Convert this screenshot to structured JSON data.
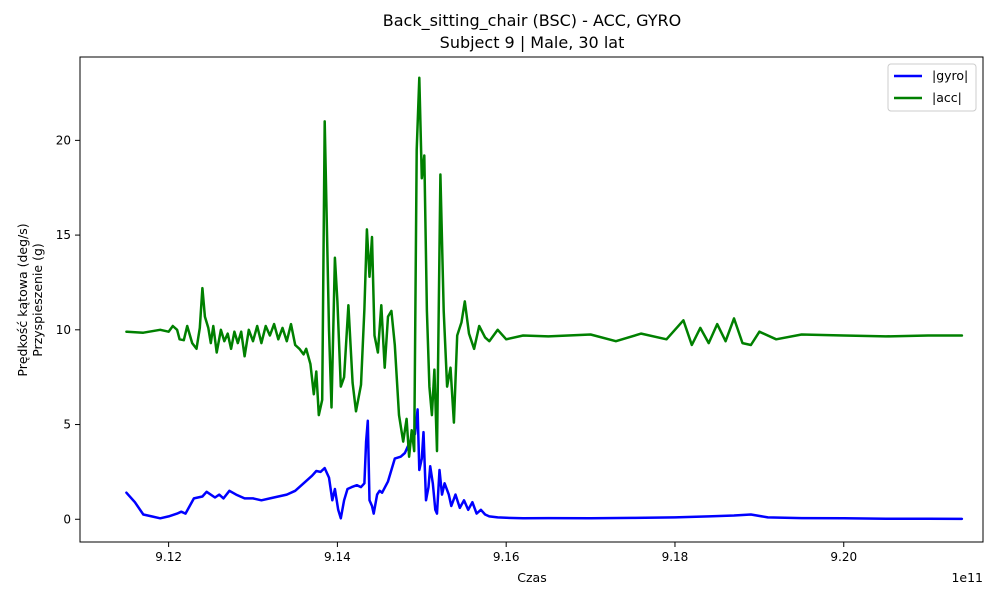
{
  "chart_data": {
    "type": "line",
    "title": "Back_sitting_chair (BSC) - ACC, GYRO",
    "subtitle": "Subject 9 | Male, 30 lat",
    "xlabel": "Czas",
    "ylabel_lines": [
      "Prędkość kątowa (deg/s)",
      "Przyspieszenie (g)"
    ],
    "x_offset_text": "1e11",
    "xlim": [
      9.1095,
      9.2165
    ],
    "ylim": [
      -1.2,
      24.4
    ],
    "x_ticks": [
      9.12,
      9.14,
      9.16,
      9.18,
      9.2
    ],
    "x_tick_labels": [
      "9.12",
      "9.14",
      "9.16",
      "9.18",
      "9.20"
    ],
    "y_ticks": [
      0,
      5,
      10,
      15,
      20
    ],
    "y_tick_labels": [
      "0",
      "5",
      "10",
      "15",
      "20"
    ],
    "grid": false,
    "legend_position": "top-right",
    "series": [
      {
        "name": "|gyro|",
        "color": "#0000ff",
        "points": [
          [
            9.115,
            1.4
          ],
          [
            9.116,
            0.9
          ],
          [
            9.117,
            0.25
          ],
          [
            9.118,
            0.15
          ],
          [
            9.119,
            0.05
          ],
          [
            9.12,
            0.15
          ],
          [
            9.121,
            0.3
          ],
          [
            9.1215,
            0.4
          ],
          [
            9.122,
            0.3
          ],
          [
            9.123,
            1.1
          ],
          [
            9.124,
            1.2
          ],
          [
            9.1245,
            1.45
          ],
          [
            9.1255,
            1.15
          ],
          [
            9.126,
            1.3
          ],
          [
            9.1265,
            1.1
          ],
          [
            9.1272,
            1.5
          ],
          [
            9.128,
            1.3
          ],
          [
            9.129,
            1.1
          ],
          [
            9.13,
            1.1
          ],
          [
            9.131,
            1.0
          ],
          [
            9.132,
            1.1
          ],
          [
            9.133,
            1.2
          ],
          [
            9.134,
            1.3
          ],
          [
            9.135,
            1.5
          ],
          [
            9.136,
            1.9
          ],
          [
            9.137,
            2.3
          ],
          [
            9.1375,
            2.55
          ],
          [
            9.138,
            2.5
          ],
          [
            9.1385,
            2.7
          ],
          [
            9.139,
            2.2
          ],
          [
            9.1394,
            1.0
          ],
          [
            9.1397,
            1.6
          ],
          [
            9.1401,
            0.5
          ],
          [
            9.1404,
            0.05
          ],
          [
            9.1408,
            1.0
          ],
          [
            9.1412,
            1.6
          ],
          [
            9.1417,
            1.7
          ],
          [
            9.1423,
            1.8
          ],
          [
            9.1428,
            1.7
          ],
          [
            9.1432,
            1.9
          ],
          [
            9.1434,
            4.1
          ],
          [
            9.1436,
            5.2
          ],
          [
            9.1438,
            1.0
          ],
          [
            9.1441,
            0.7
          ],
          [
            9.1443,
            0.3
          ],
          [
            9.1447,
            1.3
          ],
          [
            9.145,
            1.5
          ],
          [
            9.1453,
            1.4
          ],
          [
            9.146,
            2.0
          ],
          [
            9.1468,
            3.2
          ],
          [
            9.1475,
            3.3
          ],
          [
            9.148,
            3.5
          ],
          [
            9.1487,
            4.2
          ],
          [
            9.1492,
            4.5
          ],
          [
            9.1495,
            5.8
          ],
          [
            9.1497,
            2.6
          ],
          [
            9.15,
            3.2
          ],
          [
            9.1502,
            4.6
          ],
          [
            9.1505,
            1.0
          ],
          [
            9.1508,
            1.7
          ],
          [
            9.151,
            2.8
          ],
          [
            9.1513,
            1.9
          ],
          [
            9.1516,
            0.5
          ],
          [
            9.1518,
            0.3
          ],
          [
            9.1521,
            2.6
          ],
          [
            9.1524,
            1.3
          ],
          [
            9.1527,
            1.9
          ],
          [
            9.1532,
            1.3
          ],
          [
            9.1535,
            0.7
          ],
          [
            9.154,
            1.3
          ],
          [
            9.1545,
            0.6
          ],
          [
            9.155,
            1.0
          ],
          [
            9.1555,
            0.5
          ],
          [
            9.156,
            0.9
          ],
          [
            9.1565,
            0.3
          ],
          [
            9.157,
            0.5
          ],
          [
            9.1575,
            0.25
          ],
          [
            9.158,
            0.15
          ],
          [
            9.159,
            0.1
          ],
          [
            9.16,
            0.08
          ],
          [
            9.162,
            0.05
          ],
          [
            9.165,
            0.06
          ],
          [
            9.17,
            0.05
          ],
          [
            9.175,
            0.07
          ],
          [
            9.18,
            0.1
          ],
          [
            9.184,
            0.15
          ],
          [
            9.187,
            0.2
          ],
          [
            9.189,
            0.25
          ],
          [
            9.191,
            0.1
          ],
          [
            9.195,
            0.06
          ],
          [
            9.2,
            0.05
          ],
          [
            9.205,
            0.03
          ],
          [
            9.21,
            0.03
          ],
          [
            9.214,
            0.02
          ]
        ]
      },
      {
        "name": "|acc|",
        "color": "#008000",
        "points": [
          [
            9.115,
            9.9
          ],
          [
            9.117,
            9.85
          ],
          [
            9.119,
            10.0
          ],
          [
            9.12,
            9.9
          ],
          [
            9.1205,
            10.2
          ],
          [
            9.121,
            10.0
          ],
          [
            9.1213,
            9.5
          ],
          [
            9.1218,
            9.45
          ],
          [
            9.1222,
            10.2
          ],
          [
            9.1228,
            9.3
          ],
          [
            9.1233,
            9.0
          ],
          [
            9.1237,
            10.1
          ],
          [
            9.124,
            12.2
          ],
          [
            9.1243,
            10.7
          ],
          [
            9.1247,
            10.1
          ],
          [
            9.125,
            9.3
          ],
          [
            9.1253,
            10.2
          ],
          [
            9.1257,
            8.8
          ],
          [
            9.1262,
            10.0
          ],
          [
            9.1266,
            9.4
          ],
          [
            9.127,
            9.8
          ],
          [
            9.1274,
            9.0
          ],
          [
            9.1278,
            9.9
          ],
          [
            9.1282,
            9.3
          ],
          [
            9.1286,
            9.9
          ],
          [
            9.129,
            8.6
          ],
          [
            9.1295,
            10.0
          ],
          [
            9.13,
            9.4
          ],
          [
            9.1305,
            10.2
          ],
          [
            9.131,
            9.3
          ],
          [
            9.1315,
            10.2
          ],
          [
            9.132,
            9.7
          ],
          [
            9.1325,
            10.3
          ],
          [
            9.133,
            9.5
          ],
          [
            9.1335,
            10.1
          ],
          [
            9.134,
            9.4
          ],
          [
            9.1345,
            10.3
          ],
          [
            9.135,
            9.2
          ],
          [
            9.1355,
            9.0
          ],
          [
            9.136,
            8.7
          ],
          [
            9.1363,
            9.0
          ],
          [
            9.1368,
            8.2
          ],
          [
            9.1372,
            6.6
          ],
          [
            9.1375,
            7.8
          ],
          [
            9.1378,
            5.5
          ],
          [
            9.1382,
            6.3
          ],
          [
            9.1385,
            21.0
          ],
          [
            9.139,
            10.0
          ],
          [
            9.1393,
            5.9
          ],
          [
            9.1397,
            13.8
          ],
          [
            9.14,
            11.5
          ],
          [
            9.1404,
            7.0
          ],
          [
            9.1408,
            7.5
          ],
          [
            9.1413,
            11.3
          ],
          [
            9.1418,
            7.2
          ],
          [
            9.1422,
            5.7
          ],
          [
            9.1428,
            7.1
          ],
          [
            9.1432,
            11.1
          ],
          [
            9.1435,
            15.3
          ],
          [
            9.1438,
            12.8
          ],
          [
            9.1441,
            14.9
          ],
          [
            9.1444,
            9.7
          ],
          [
            9.1448,
            8.8
          ],
          [
            9.1452,
            11.3
          ],
          [
            9.1456,
            8.0
          ],
          [
            9.146,
            10.7
          ],
          [
            9.1464,
            11.0
          ],
          [
            9.1468,
            9.2
          ],
          [
            9.1473,
            5.5
          ],
          [
            9.1478,
            4.1
          ],
          [
            9.1482,
            5.3
          ],
          [
            9.1485,
            3.3
          ],
          [
            9.1488,
            4.7
          ],
          [
            9.1491,
            3.6
          ],
          [
            9.1494,
            19.5
          ],
          [
            9.1497,
            23.3
          ],
          [
            9.15,
            18.0
          ],
          [
            9.1503,
            19.2
          ],
          [
            9.1506,
            11.0
          ],
          [
            9.1509,
            7.0
          ],
          [
            9.1512,
            5.5
          ],
          [
            9.1515,
            7.9
          ],
          [
            9.1518,
            3.6
          ],
          [
            9.1522,
            18.2
          ],
          [
            9.1526,
            11.0
          ],
          [
            9.153,
            7.0
          ],
          [
            9.1534,
            8.0
          ],
          [
            9.1538,
            5.1
          ],
          [
            9.1542,
            9.7
          ],
          [
            9.1547,
            10.4
          ],
          [
            9.1551,
            11.5
          ],
          [
            9.1556,
            9.8
          ],
          [
            9.1562,
            9.0
          ],
          [
            9.1568,
            10.2
          ],
          [
            9.1575,
            9.6
          ],
          [
            9.158,
            9.4
          ],
          [
            9.159,
            10.0
          ],
          [
            9.16,
            9.5
          ],
          [
            9.162,
            9.7
          ],
          [
            9.165,
            9.65
          ],
          [
            9.17,
            9.75
          ],
          [
            9.173,
            9.4
          ],
          [
            9.176,
            9.8
          ],
          [
            9.179,
            9.5
          ],
          [
            9.181,
            10.5
          ],
          [
            9.182,
            9.2
          ],
          [
            9.183,
            10.1
          ],
          [
            9.184,
            9.3
          ],
          [
            9.185,
            10.3
          ],
          [
            9.186,
            9.4
          ],
          [
            9.187,
            10.6
          ],
          [
            9.188,
            9.3
          ],
          [
            9.189,
            9.2
          ],
          [
            9.19,
            9.9
          ],
          [
            9.192,
            9.5
          ],
          [
            9.195,
            9.75
          ],
          [
            9.2,
            9.7
          ],
          [
            9.205,
            9.65
          ],
          [
            9.21,
            9.7
          ],
          [
            9.214,
            9.7
          ]
        ]
      }
    ]
  }
}
